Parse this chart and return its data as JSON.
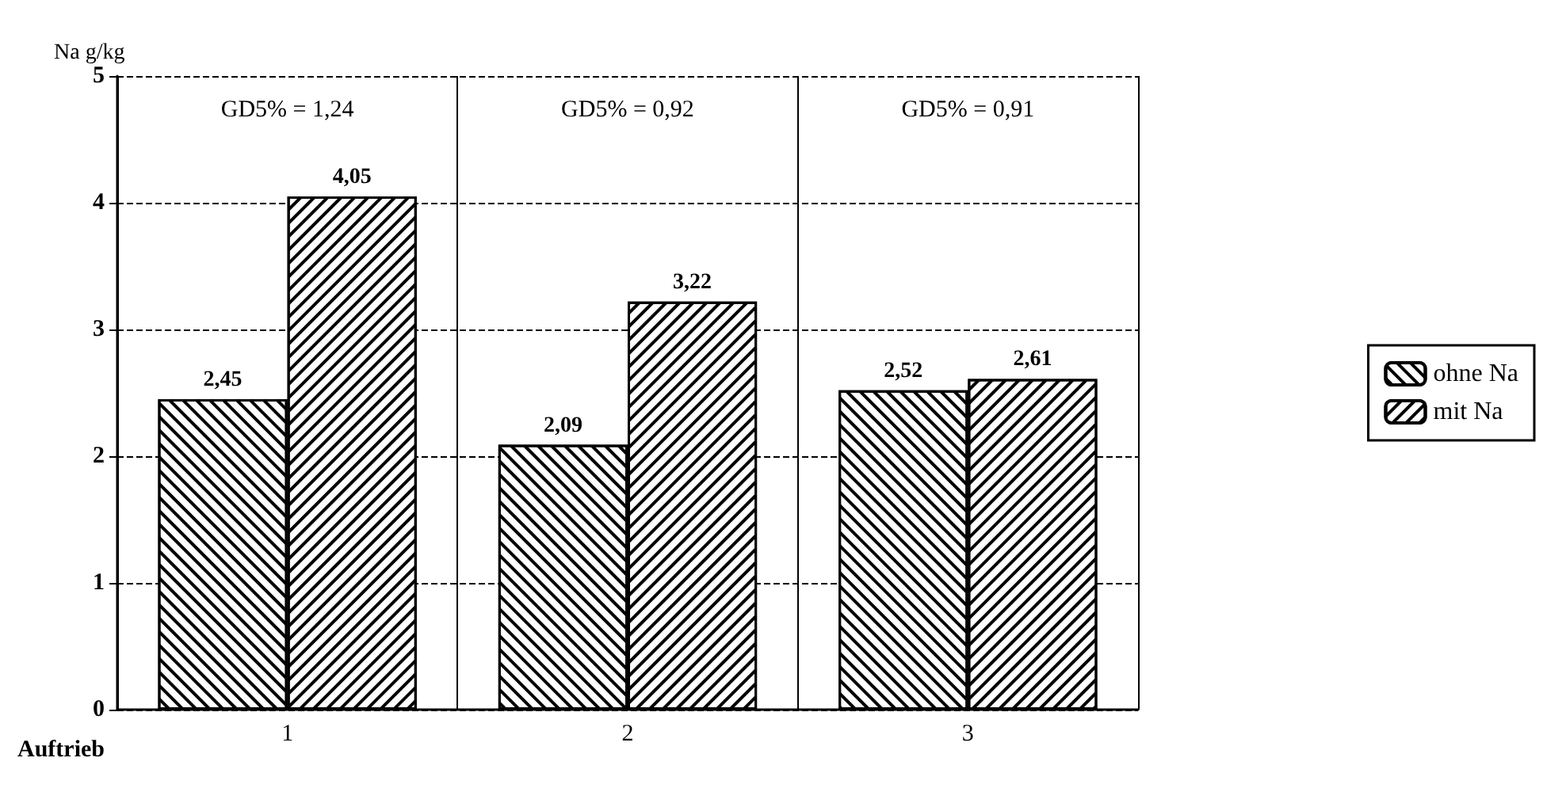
{
  "chart_data": {
    "type": "bar",
    "xlabel": "Auftrieb",
    "ylabel": "Na g/kg",
    "categories": [
      "1",
      "2",
      "3"
    ],
    "series": [
      {
        "name": "ohne Na",
        "color": "#000000",
        "values": [
          2.45,
          2.09,
          2.52
        ],
        "value_labels": [
          "2,45",
          "2,09",
          "2,52"
        ]
      },
      {
        "name": "mit Na",
        "color": "#000000",
        "values": [
          4.05,
          3.22,
          2.61
        ],
        "value_labels": [
          "4,05",
          "3,22",
          "2,61"
        ]
      }
    ],
    "ylim": [
      0,
      5
    ],
    "yticks": [
      0,
      1,
      2,
      3,
      4,
      5
    ],
    "grid": true,
    "legend": "right",
    "annotations": [
      "GD5% = 1,24",
      "GD5% = 0,92",
      "GD5% = 0,91"
    ]
  }
}
